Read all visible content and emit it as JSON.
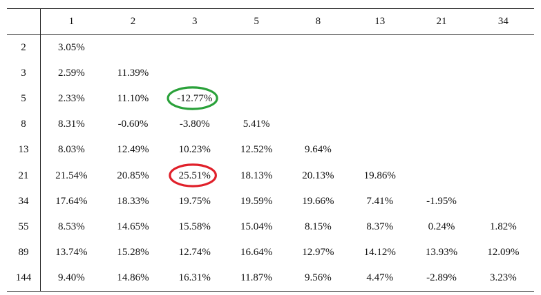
{
  "table": {
    "col_headers": [
      "1",
      "2",
      "3",
      "5",
      "8",
      "13",
      "21",
      "34"
    ],
    "rows": [
      {
        "label": "2",
        "cells": [
          "3.05%",
          "",
          "",
          "",
          "",
          "",
          "",
          ""
        ]
      },
      {
        "label": "3",
        "cells": [
          "2.59%",
          "11.39%",
          "",
          "",
          "",
          "",
          "",
          ""
        ]
      },
      {
        "label": "5",
        "cells": [
          "2.33%",
          "11.10%",
          "-12.77%",
          "",
          "",
          "",
          "",
          ""
        ]
      },
      {
        "label": "8",
        "cells": [
          "8.31%",
          "-0.60%",
          "-3.80%",
          "5.41%",
          "",
          "",
          "",
          ""
        ]
      },
      {
        "label": "13",
        "cells": [
          "8.03%",
          "12.49%",
          "10.23%",
          "12.52%",
          "9.64%",
          "",
          "",
          ""
        ]
      },
      {
        "label": "21",
        "cells": [
          "21.54%",
          "20.85%",
          "25.51%",
          "18.13%",
          "20.13%",
          "19.86%",
          "",
          ""
        ]
      },
      {
        "label": "34",
        "cells": [
          "17.64%",
          "18.33%",
          "19.75%",
          "19.59%",
          "19.66%",
          "7.41%",
          "-1.95%",
          ""
        ]
      },
      {
        "label": "55",
        "cells": [
          "8.53%",
          "14.65%",
          "15.58%",
          "15.04%",
          "8.15%",
          "8.37%",
          "0.24%",
          "1.82%"
        ]
      },
      {
        "label": "89",
        "cells": [
          "13.74%",
          "15.28%",
          "12.74%",
          "16.64%",
          "12.97%",
          "14.12%",
          "13.93%",
          "12.09%"
        ]
      },
      {
        "label": "144",
        "cells": [
          "9.40%",
          "14.86%",
          "16.31%",
          "11.87%",
          "9.56%",
          "4.47%",
          "-2.89%",
          "3.23%"
        ]
      }
    ]
  },
  "highlights": [
    {
      "row": 2,
      "col": 2,
      "color": "#2aa13a",
      "meaning": "lowest"
    },
    {
      "row": 5,
      "col": 2,
      "color": "#e0202a",
      "meaning": "highest"
    }
  ]
}
